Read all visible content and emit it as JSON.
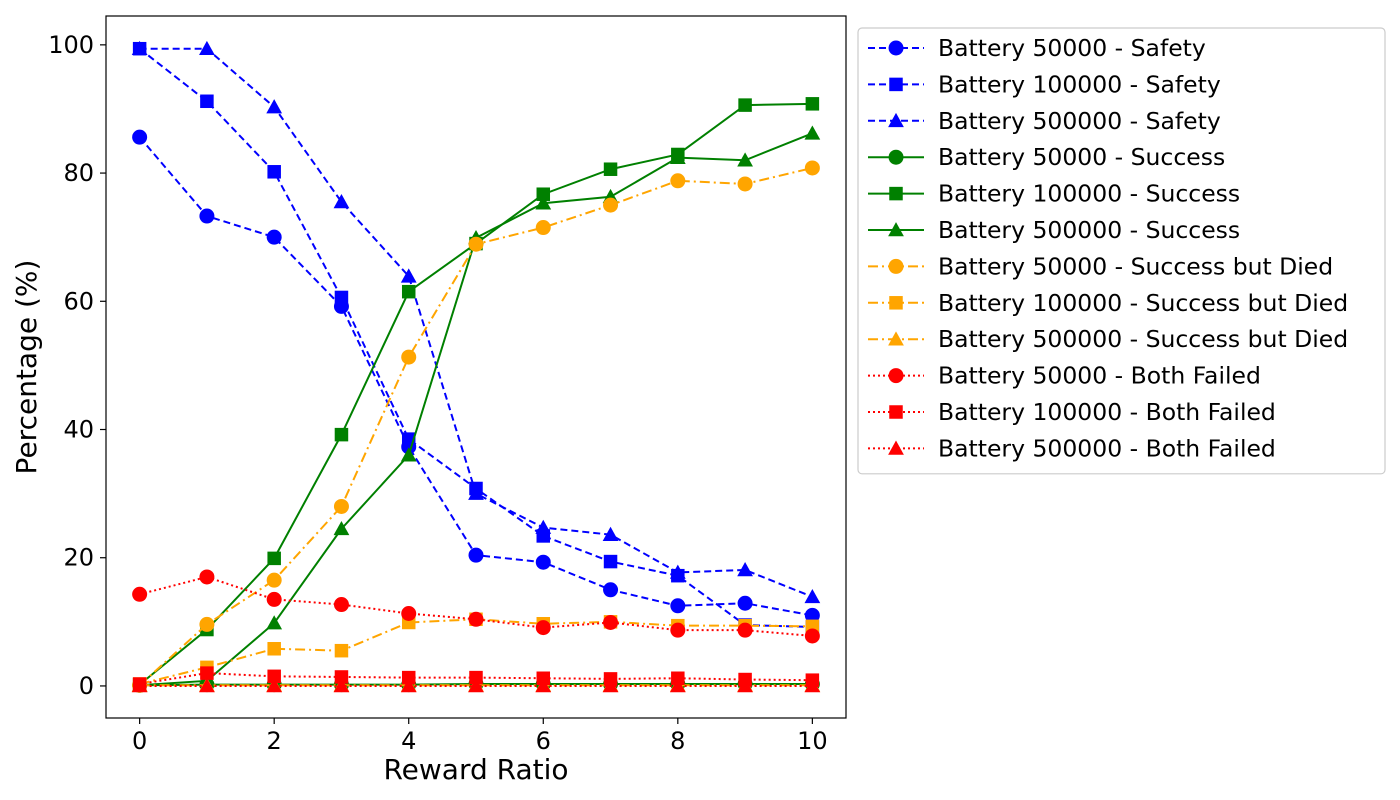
{
  "chart_data": {
    "type": "line",
    "title": "",
    "xlabel": "Reward Ratio",
    "ylabel": "Percentage (%)",
    "x": [
      0,
      1,
      2,
      3,
      4,
      5,
      6,
      7,
      8,
      9,
      10
    ],
    "xlim": [
      -0.5,
      10.5
    ],
    "ylim": [
      -5,
      104.5
    ],
    "xticks": [
      "0",
      "2",
      "4",
      "6",
      "8",
      "10"
    ],
    "yticks": [
      "0",
      "20",
      "40",
      "60",
      "80",
      "100"
    ],
    "grid": false,
    "legend_position": "outside-right-top",
    "series": [
      {
        "name": "Battery 50000 - Safety",
        "color": "#0000ff",
        "linestyle": "dashed",
        "marker": "circle",
        "values": [
          85.6,
          73.3,
          70.0,
          59.2,
          37.3,
          20.4,
          19.3,
          15.0,
          12.5,
          12.9,
          11.0
        ]
      },
      {
        "name": "Battery 100000 - Safety",
        "color": "#0000ff",
        "linestyle": "dashed",
        "marker": "square",
        "values": [
          99.4,
          91.2,
          80.2,
          60.6,
          38.5,
          30.8,
          23.4,
          19.4,
          17.2,
          9.5,
          9.2
        ]
      },
      {
        "name": "Battery 500000 - Safety",
        "color": "#0000ff",
        "linestyle": "dashed",
        "marker": "triangle",
        "values": [
          99.4,
          99.4,
          90.3,
          75.5,
          63.9,
          30.0,
          24.7,
          23.6,
          17.7,
          18.1,
          13.9
        ]
      },
      {
        "name": "Battery 50000 - Success",
        "color": "#008000",
        "linestyle": "solid",
        "marker": "circle",
        "values": [
          0.1,
          0.2,
          0.2,
          0.2,
          0.2,
          0.3,
          0.3,
          0.3,
          0.3,
          0.3,
          0.3
        ]
      },
      {
        "name": "Battery 100000 - Success",
        "color": "#008000",
        "linestyle": "solid",
        "marker": "square",
        "values": [
          0.2,
          8.8,
          19.9,
          39.2,
          61.5,
          69.0,
          76.7,
          80.6,
          82.9,
          90.6,
          90.8
        ]
      },
      {
        "name": "Battery 500000 - Success",
        "color": "#008000",
        "linestyle": "solid",
        "marker": "triangle",
        "values": [
          0.1,
          0.8,
          9.8,
          24.5,
          36.0,
          69.9,
          75.3,
          76.3,
          82.4,
          82.0,
          86.2
        ]
      },
      {
        "name": "Battery 50000 - Success but Died",
        "color": "#ffa500",
        "linestyle": "dashdot",
        "marker": "circle",
        "values": [
          0.1,
          9.6,
          16.5,
          28.0,
          51.3,
          68.9,
          71.5,
          75.0,
          78.8,
          78.3,
          80.8
        ]
      },
      {
        "name": "Battery 100000 - Success but Died",
        "color": "#ffa500",
        "linestyle": "dashdot",
        "marker": "square",
        "values": [
          0.3,
          2.9,
          5.8,
          5.5,
          9.9,
          10.4,
          9.7,
          10.0,
          9.4,
          9.4,
          9.3
        ]
      },
      {
        "name": "Battery 500000 - Success but Died",
        "color": "#ffa500",
        "linestyle": "dashdot",
        "marker": "triangle",
        "values": [
          0.1,
          0.1,
          0.1,
          0.1,
          0.1,
          0.1,
          0.1,
          0.1,
          0.1,
          0.1,
          0.1
        ]
      },
      {
        "name": "Battery 50000 - Both Failed",
        "color": "#ff0000",
        "linestyle": "dotted",
        "marker": "circle",
        "values": [
          14.3,
          17.0,
          13.5,
          12.7,
          11.3,
          10.4,
          9.1,
          9.9,
          8.7,
          8.7,
          7.8
        ]
      },
      {
        "name": "Battery 100000 - Both Failed",
        "color": "#ff0000",
        "linestyle": "dotted",
        "marker": "square",
        "values": [
          0.3,
          2.0,
          1.5,
          1.4,
          1.3,
          1.3,
          1.2,
          1.1,
          1.2,
          1.0,
          0.9
        ]
      },
      {
        "name": "Battery 500000 - Both Failed",
        "color": "#ff0000",
        "linestyle": "dotted",
        "marker": "triangle",
        "values": [
          0.0,
          0.0,
          0.0,
          0.0,
          0.0,
          0.0,
          0.0,
          0.0,
          0.0,
          0.0,
          0.0
        ]
      }
    ]
  }
}
